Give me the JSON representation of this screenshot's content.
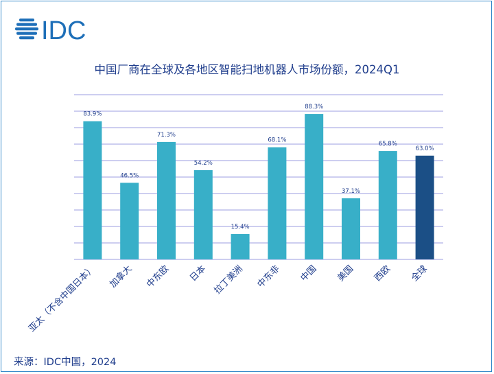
{
  "logo": {
    "text": "IDC",
    "color": "#1e6fb8"
  },
  "chart_data": {
    "type": "bar",
    "title": "中国厂商在全球及各地区智能扫地机器人市场份额，2024Q1",
    "categories": [
      "亚太（不含中国日本）",
      "加拿大",
      "中东欧",
      "日本",
      "拉丁美洲",
      "中东非",
      "中国",
      "美国",
      "西欧",
      "全球"
    ],
    "values": [
      83.9,
      46.5,
      71.3,
      54.2,
      15.4,
      68.1,
      88.3,
      37.1,
      65.8,
      63.0
    ],
    "value_labels": [
      "83.9%",
      "46.5%",
      "71.3%",
      "54.2%",
      "15.4%",
      "68.1%",
      "88.3%",
      "37.1%",
      "65.8%",
      "63.0%"
    ],
    "ylim": [
      0,
      100
    ],
    "grid": true,
    "colors": {
      "bar": "#38afc8",
      "highlight": "#1b4f86",
      "grid": "#9b9ee0",
      "label": "#1f3d8c"
    },
    "highlight_category": "全球"
  },
  "source": "来源：IDC中国，2024"
}
